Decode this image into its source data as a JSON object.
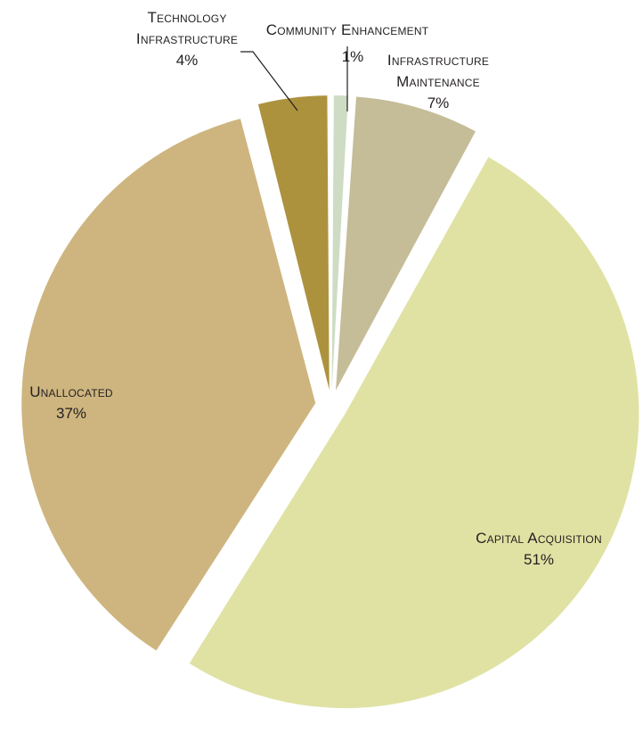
{
  "chart_data": {
    "type": "pie",
    "title": "",
    "start_angle_deg": 0,
    "direction": "clockwise",
    "slices": [
      {
        "label": "Community Enhancement",
        "label_lines": [
          "Community Enhancement"
        ],
        "value": 1,
        "value_label": "1%",
        "color": "#cddcc3"
      },
      {
        "label": "Infrastructure Maintenance",
        "label_lines": [
          "Infrastructure",
          "Maintenance"
        ],
        "value": 7,
        "value_label": "7%",
        "color": "#c5bc98"
      },
      {
        "label": "Capital Acquisition",
        "label_lines": [
          "Capital Acquisition"
        ],
        "value": 51,
        "value_label": "51%",
        "color": "#e0e2a4"
      },
      {
        "label": "Unallocated",
        "label_lines": [
          "Unallocated"
        ],
        "value": 37,
        "value_label": "37%",
        "color": "#ceb57f"
      },
      {
        "label": "Technology Infrastructure",
        "label_lines": [
          "Technology",
          "Infrastructure"
        ],
        "value": 4,
        "value_label": "4%",
        "color": "#ad923e"
      }
    ]
  }
}
